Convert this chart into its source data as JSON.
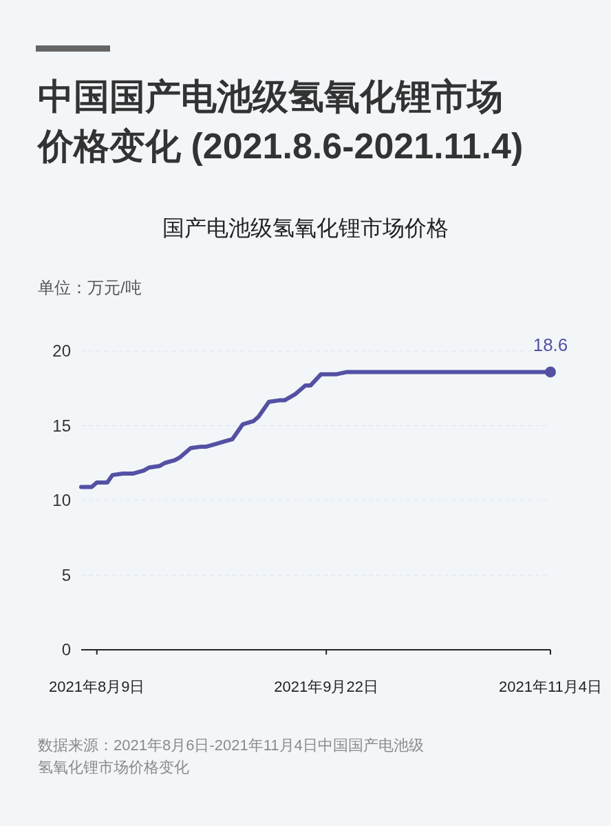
{
  "chart_data": {
    "type": "line",
    "title": "中国国产电池级氢氧化锂市场价格变化 (2021.8.6-2021.11.4)",
    "subtitle": "国产电池级氢氧化锂市场价格",
    "ylabel": "单位：万元/吨",
    "annotations": [
      "数据来源：2021年8月6日-2021年11月4日中国国产电池级氢氧化锂市场价格变化"
    ],
    "series": [
      {
        "color": "#5451a4",
        "marker": "none",
        "x": [
          "2021-08-06",
          "2021-08-08",
          "2021-08-09",
          "2021-08-11",
          "2021-08-12",
          "2021-08-14",
          "2021-08-16",
          "2021-08-18",
          "2021-08-19",
          "2021-08-21",
          "2021-08-22",
          "2021-08-24",
          "2021-08-25",
          "2021-08-27",
          "2021-08-29",
          "2021-08-30",
          "2021-09-01",
          "2021-09-03",
          "2021-09-04",
          "2021-09-06",
          "2021-09-08",
          "2021-09-09",
          "2021-09-11",
          "2021-09-13",
          "2021-09-14",
          "2021-09-16",
          "2021-09-18",
          "2021-09-19",
          "2021-09-21",
          "2021-09-24",
          "2021-09-26",
          "2021-11-04"
        ],
        "values": [
          10.9,
          10.9,
          11.2,
          11.2,
          11.7,
          11.8,
          11.8,
          12.0,
          12.2,
          12.3,
          12.5,
          12.7,
          12.9,
          13.5,
          13.6,
          13.6,
          13.8,
          14.0,
          14.1,
          15.1,
          15.3,
          15.6,
          16.6,
          16.7,
          16.7,
          17.1,
          17.7,
          17.7,
          18.45,
          18.45,
          18.6,
          18.6
        ]
      },
      {
        "type": "scatter",
        "color": "#5451a4",
        "marker": "circle",
        "x": [
          "2021-11-04"
        ],
        "values": [
          18.6
        ],
        "value_labels": [
          "18.6"
        ]
      }
    ],
    "xlim": [
      "2021-08-06",
      "2021-11-04"
    ],
    "xticks": [
      {
        "value": "2021-08-09",
        "label": "2021年8月9日"
      },
      {
        "value": "2021-09-22",
        "label": "2021年9月22日"
      },
      {
        "value": "2021-11-04",
        "label": "2021年11月4日"
      }
    ],
    "ylim": [
      0,
      20
    ],
    "yticks": [
      0,
      5,
      10,
      15,
      20
    ],
    "grid": "y",
    "line_style": "solid"
  }
}
